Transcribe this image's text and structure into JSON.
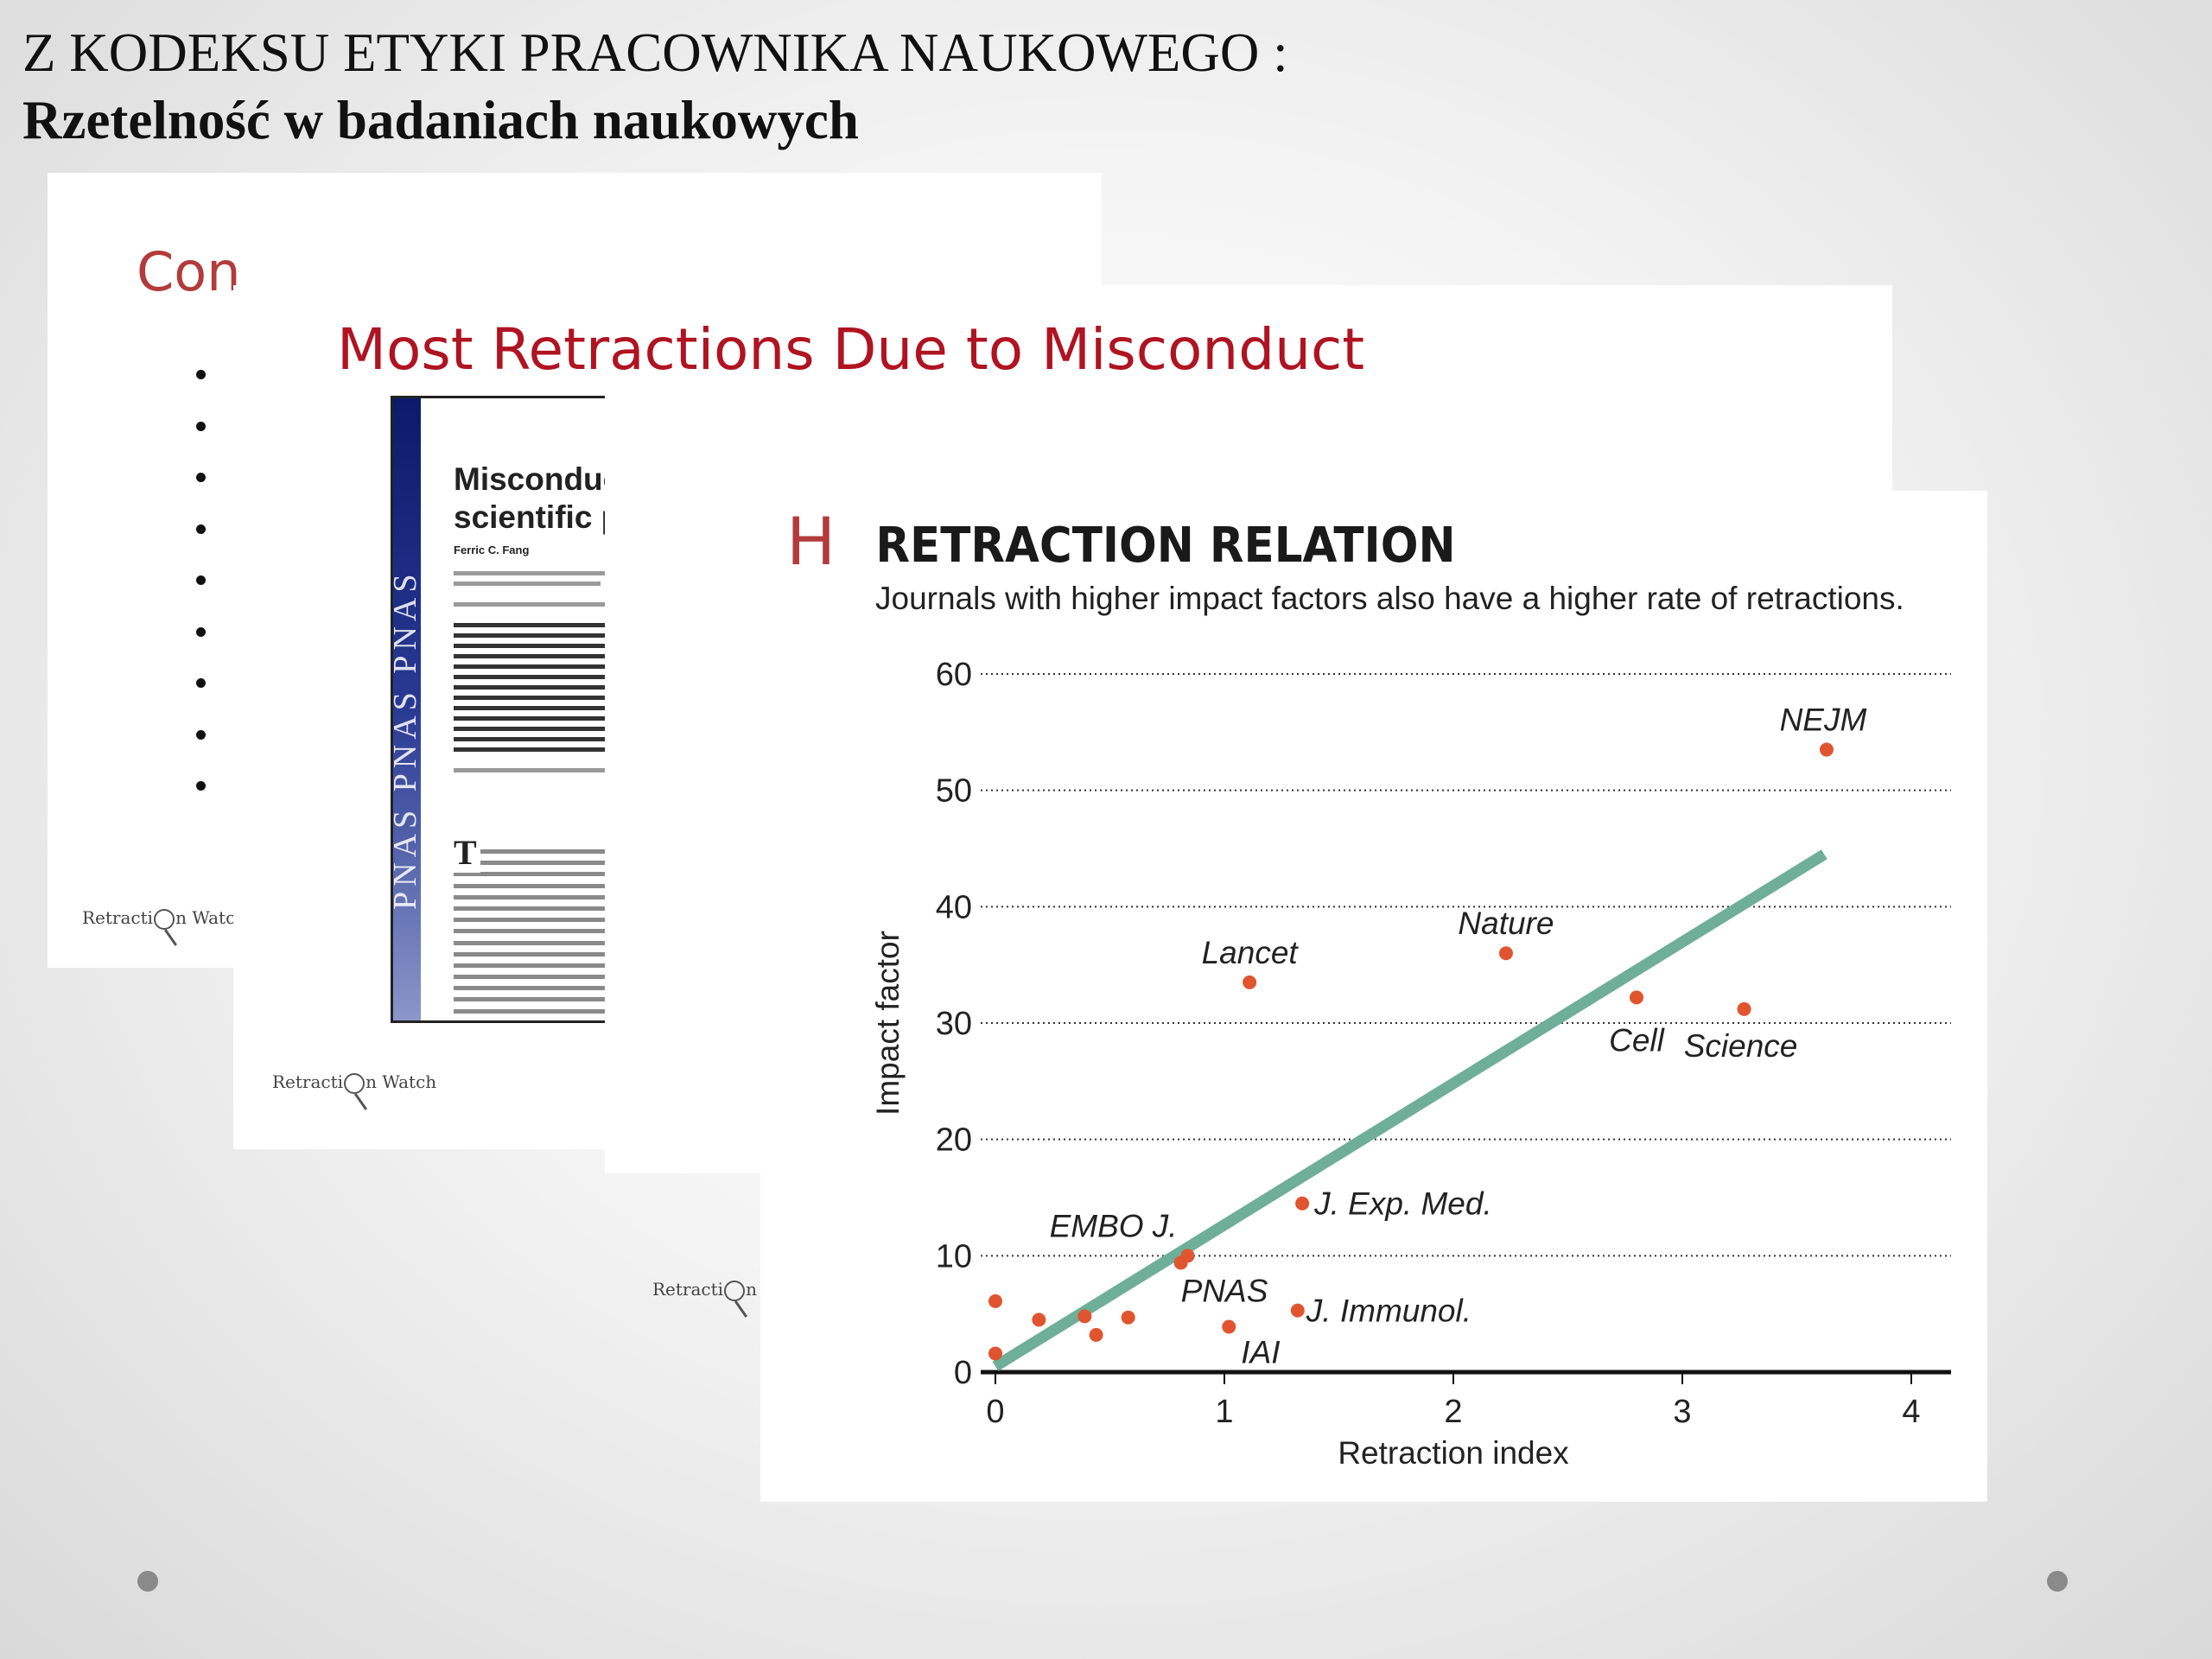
{
  "slide": {
    "title_line1": "Z KODEKSU ETYKI PRACOWNIKA NAUKOWEGO :",
    "title_line2": "Rzetelność w badaniach naukowych"
  },
  "back_slide": {
    "heading": "Con",
    "bullet_count": 9,
    "logo": {
      "part1": "Retracti",
      "part2": "n Watch"
    }
  },
  "mid_slide": {
    "heading": "Most Retractions Due to Misconduct",
    "logo": {
      "part1": "Retracti",
      "part2": "n Watch"
    },
    "paper": {
      "spine": "PNAS   PNAS   PNAS",
      "title_line1": "Misconduct",
      "title_line2": "scientific pu",
      "authors": "Ferric C. Fang",
      "dropcap": "T"
    }
  },
  "front_slide": {
    "panel_letter": "H",
    "bullet_count": 4,
    "logo": {
      "part1": "Retracti",
      "part2": "n Watch"
    }
  },
  "chart_data": {
    "type": "scatter",
    "title": "RETRACTION RELATION",
    "subtitle": "Journals with higher impact factors also have a higher rate of retractions.",
    "xlabel": "Retraction index",
    "ylabel": "Impact factor",
    "xlim": [
      0,
      4
    ],
    "ylim": [
      0,
      60
    ],
    "xticks": [
      0,
      1,
      2,
      3,
      4
    ],
    "yticks": [
      0,
      10,
      20,
      30,
      40,
      50,
      60
    ],
    "grid": "horizontal dotted",
    "point_color": "#e0552f",
    "trend_color": "#6fae98",
    "points": [
      {
        "x": 3.63,
        "y": 53.5,
        "label": "NEJM"
      },
      {
        "x": 2.23,
        "y": 36.0,
        "label": "Nature"
      },
      {
        "x": 1.11,
        "y": 33.5,
        "label": "Lancet"
      },
      {
        "x": 2.8,
        "y": 32.2,
        "label": "Cell"
      },
      {
        "x": 3.27,
        "y": 31.2,
        "label": "Science"
      },
      {
        "x": 1.34,
        "y": 14.5,
        "label": "J. Exp. Med."
      },
      {
        "x": 0.84,
        "y": 10.0,
        "label": "EMBO J."
      },
      {
        "x": 0.81,
        "y": 9.4,
        "label": "PNAS"
      },
      {
        "x": 1.32,
        "y": 5.3,
        "label": "J. Immunol."
      },
      {
        "x": 1.02,
        "y": 3.9,
        "label": "IAI"
      },
      {
        "x": 0.0,
        "y": 6.1,
        "label": ""
      },
      {
        "x": 0.0,
        "y": 1.6,
        "label": ""
      },
      {
        "x": 0.19,
        "y": 4.5,
        "label": ""
      },
      {
        "x": 0.39,
        "y": 4.8,
        "label": ""
      },
      {
        "x": 0.44,
        "y": 3.2,
        "label": ""
      },
      {
        "x": 0.58,
        "y": 4.7,
        "label": ""
      }
    ],
    "trendline": [
      [
        0,
        0.5
      ],
      [
        3.62,
        44.5
      ]
    ]
  }
}
